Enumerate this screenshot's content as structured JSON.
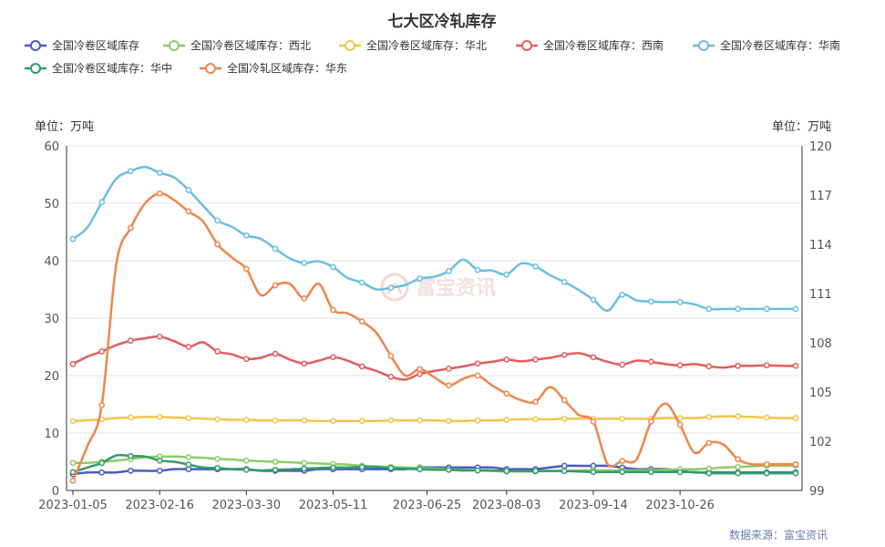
{
  "chart_data": {
    "type": "line",
    "title": "七大区冷轧库存",
    "y_left_unit": "单位：万吨",
    "y_right_unit": "单位：万吨",
    "x_tick_labels": [
      "2023-01-05",
      "2023-02-16",
      "2023-03-30",
      "2023-05-11",
      "2023-06-25",
      "2023-08-03",
      "2023-09-14",
      "2023-10-26"
    ],
    "y_left": {
      "min": 0,
      "max": 60,
      "ticks": [
        0,
        10,
        20,
        30,
        40,
        50,
        60
      ]
    },
    "y_right": {
      "min": 99,
      "max": 120,
      "ticks": [
        99,
        102,
        105,
        108,
        111,
        114,
        117,
        120
      ]
    },
    "grid": "horizontal",
    "legend_position": "top",
    "source": "数据来源：富宝资讯",
    "watermark": "富宝资讯",
    "series": [
      {
        "name": "全国冷卷区域库存",
        "color": "#4a5bc4",
        "axis": "right",
        "values": [
          100.0,
          100.1,
          100.1,
          100.1,
          100.2,
          100.2,
          100.2,
          100.3,
          100.3,
          100.3,
          100.3,
          100.3,
          100.3,
          100.2,
          100.2,
          100.2,
          100.2,
          100.3,
          100.3,
          100.3,
          100.3,
          100.3,
          100.3,
          100.3,
          100.4,
          100.4,
          100.4,
          100.4,
          100.4,
          100.4,
          100.3,
          100.3,
          100.3,
          100.4,
          100.5,
          100.5,
          100.5,
          100.5,
          100.4,
          100.3,
          100.3,
          100.3,
          100.2,
          100.1,
          100.1,
          100.1,
          100.1,
          100.1,
          100.1,
          100.1,
          100.1
        ]
      },
      {
        "name": "全国冷卷区域库存：西北",
        "color": "#8fcb6a",
        "axis": "left",
        "values": [
          4.8,
          4.8,
          5.0,
          5.2,
          5.5,
          5.8,
          5.9,
          5.9,
          5.8,
          5.7,
          5.5,
          5.4,
          5.2,
          5.1,
          5.0,
          4.9,
          4.8,
          4.7,
          4.6,
          4.5,
          4.3,
          4.2,
          4.1,
          4.0,
          3.9,
          3.8,
          3.7,
          3.6,
          3.5,
          3.4,
          3.3,
          3.3,
          3.3,
          3.4,
          3.4,
          3.5,
          3.5,
          3.5,
          3.5,
          3.5,
          3.5,
          3.6,
          3.7,
          3.7,
          3.8,
          4.0,
          4.1,
          4.2,
          4.3,
          4.3,
          4.3
        ]
      },
      {
        "name": "全国冷卷区域库存：华北",
        "color": "#f2c54c",
        "axis": "left",
        "values": [
          12.1,
          12.2,
          12.4,
          12.6,
          12.7,
          12.8,
          12.8,
          12.7,
          12.6,
          12.5,
          12.4,
          12.3,
          12.3,
          12.2,
          12.2,
          12.2,
          12.2,
          12.1,
          12.1,
          12.1,
          12.1,
          12.1,
          12.2,
          12.2,
          12.2,
          12.2,
          12.1,
          12.1,
          12.2,
          12.2,
          12.3,
          12.4,
          12.4,
          12.4,
          12.5,
          12.5,
          12.5,
          12.5,
          12.5,
          12.5,
          12.5,
          12.6,
          12.6,
          12.6,
          12.8,
          12.9,
          12.9,
          12.8,
          12.7,
          12.6,
          12.6
        ]
      },
      {
        "name": "全国冷卷区域库存：西南",
        "color": "#e05e5e",
        "axis": "left",
        "values": [
          22.0,
          23.3,
          24.2,
          25.3,
          26.1,
          26.5,
          26.8,
          26.0,
          25.0,
          25.8,
          24.2,
          23.7,
          22.9,
          23.1,
          23.8,
          22.8,
          22.1,
          22.6,
          23.2,
          22.6,
          21.6,
          20.8,
          19.8,
          19.3,
          20.3,
          20.8,
          21.2,
          21.6,
          22.1,
          22.4,
          22.8,
          22.5,
          22.8,
          23.1,
          23.6,
          23.9,
          23.2,
          22.4,
          21.9,
          22.6,
          22.4,
          22.0,
          21.8,
          22.0,
          21.6,
          21.4,
          21.7,
          21.7,
          21.8,
          21.7,
          21.7
        ]
      },
      {
        "name": "全国冷卷区域库存：华南",
        "color": "#6bbfe0",
        "axis": "left",
        "values": [
          43.8,
          45.8,
          50.2,
          54.3,
          55.6,
          56.3,
          55.3,
          54.5,
          52.3,
          49.6,
          47.0,
          45.9,
          44.4,
          43.8,
          42.1,
          40.4,
          39.6,
          39.9,
          38.9,
          37.0,
          36.2,
          35.0,
          35.3,
          35.8,
          36.9,
          37.2,
          38.2,
          40.2,
          38.4,
          38.3,
          37.6,
          39.5,
          39.0,
          37.5,
          36.3,
          34.9,
          33.2,
          31.3,
          34.1,
          33.1,
          32.9,
          32.8,
          32.8,
          32.4,
          31.6,
          31.6,
          31.6,
          31.6,
          31.6,
          31.6,
          31.6
        ]
      },
      {
        "name": "全国冷卷区域库存：华中",
        "color": "#2e9e6a",
        "axis": "left",
        "values": [
          3.2,
          4.0,
          4.8,
          6.1,
          6.0,
          5.9,
          5.2,
          5.0,
          4.5,
          4.0,
          3.9,
          3.7,
          3.6,
          3.5,
          3.6,
          3.7,
          3.8,
          3.9,
          4.0,
          4.0,
          4.1,
          4.1,
          3.9,
          3.8,
          3.7,
          3.6,
          3.6,
          3.5,
          3.5,
          3.5,
          3.4,
          3.4,
          3.4,
          3.4,
          3.4,
          3.3,
          3.2,
          3.2,
          3.2,
          3.2,
          3.2,
          3.2,
          3.2,
          3.2,
          3.0,
          3.0,
          3.0,
          3.0,
          3.0,
          3.0,
          3.0
        ]
      },
      {
        "name": "全国冷轧区域库存：华东",
        "color": "#f0854a",
        "axis": "right",
        "values": [
          99.6,
          101.7,
          104.2,
          112.8,
          115.0,
          116.5,
          117.1,
          116.7,
          116.0,
          115.4,
          114.0,
          113.2,
          112.5,
          110.9,
          111.5,
          111.6,
          110.7,
          111.6,
          110.0,
          109.8,
          109.3,
          108.6,
          107.2,
          106.0,
          106.4,
          105.9,
          105.4,
          105.8,
          106.0,
          105.4,
          104.9,
          104.5,
          104.4,
          105.3,
          104.5,
          103.6,
          103.2,
          100.6,
          100.8,
          100.9,
          103.2,
          104.3,
          103.0,
          101.3,
          101.9,
          101.8,
          100.9,
          100.6,
          100.6,
          100.6,
          100.6
        ]
      }
    ]
  }
}
